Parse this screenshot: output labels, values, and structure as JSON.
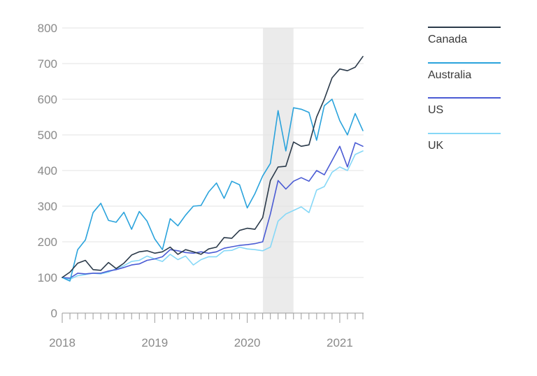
{
  "chart_data": {
    "type": "line",
    "title": "",
    "xlabel": "",
    "ylabel": "",
    "ylim": [
      0,
      800
    ],
    "yticks": [
      0,
      100,
      200,
      300,
      400,
      500,
      600,
      700,
      800
    ],
    "xlim": [
      2018.0,
      2021.25
    ],
    "xticks": [
      {
        "value": 2018,
        "label": "2018"
      },
      {
        "value": 2019,
        "label": "2019"
      },
      {
        "value": 2020,
        "label": "2020"
      },
      {
        "value": 2021,
        "label": "2021"
      }
    ],
    "shaded_period": [
      2020.17,
      2020.5
    ],
    "x": [
      2018.0,
      2018.083,
      2018.167,
      2018.25,
      2018.333,
      2018.417,
      2018.5,
      2018.583,
      2018.667,
      2018.75,
      2018.833,
      2018.917,
      2019.0,
      2019.083,
      2019.167,
      2019.25,
      2019.333,
      2019.417,
      2019.5,
      2019.583,
      2019.667,
      2019.75,
      2019.833,
      2019.917,
      2020.0,
      2020.083,
      2020.167,
      2020.25,
      2020.333,
      2020.417,
      2020.5,
      2020.583,
      2020.667,
      2020.75,
      2020.833,
      2020.917,
      2021.0,
      2021.083,
      2021.167,
      2021.25
    ],
    "series": [
      {
        "name": "Canada",
        "color": "#2b3a4a",
        "values": [
          100,
          115,
          140,
          148,
          122,
          120,
          142,
          125,
          140,
          163,
          172,
          175,
          168,
          172,
          185,
          165,
          178,
          172,
          165,
          180,
          185,
          212,
          210,
          232,
          238,
          235,
          268,
          372,
          410,
          412,
          480,
          468,
          472,
          550,
          600,
          660,
          685,
          680,
          690,
          720
        ]
      },
      {
        "name": "Australia",
        "color": "#2aa3dc",
        "values": [
          100,
          90,
          178,
          205,
          282,
          308,
          260,
          255,
          283,
          235,
          285,
          258,
          208,
          178,
          265,
          245,
          275,
          300,
          302,
          340,
          365,
          322,
          370,
          360,
          295,
          335,
          385,
          420,
          568,
          455,
          576,
          572,
          563,
          485,
          582,
          600,
          540,
          500,
          560,
          512
        ]
      },
      {
        "name": "US",
        "color": "#4a5bd4",
        "values": [
          100,
          98,
          112,
          110,
          112,
          112,
          118,
          122,
          128,
          135,
          138,
          148,
          152,
          158,
          178,
          175,
          170,
          168,
          172,
          168,
          172,
          182,
          186,
          190,
          192,
          195,
          200,
          278,
          372,
          348,
          370,
          380,
          370,
          400,
          388,
          428,
          468,
          410,
          478,
          468
        ]
      },
      {
        "name": "UK",
        "color": "#86d8f7",
        "values": [
          100,
          95,
          105,
          108,
          112,
          110,
          115,
          125,
          133,
          145,
          148,
          160,
          152,
          145,
          165,
          150,
          160,
          135,
          150,
          158,
          158,
          175,
          176,
          185,
          180,
          178,
          175,
          185,
          258,
          278,
          288,
          298,
          282,
          345,
          355,
          395,
          410,
          400,
          445,
          455
        ]
      }
    ]
  }
}
